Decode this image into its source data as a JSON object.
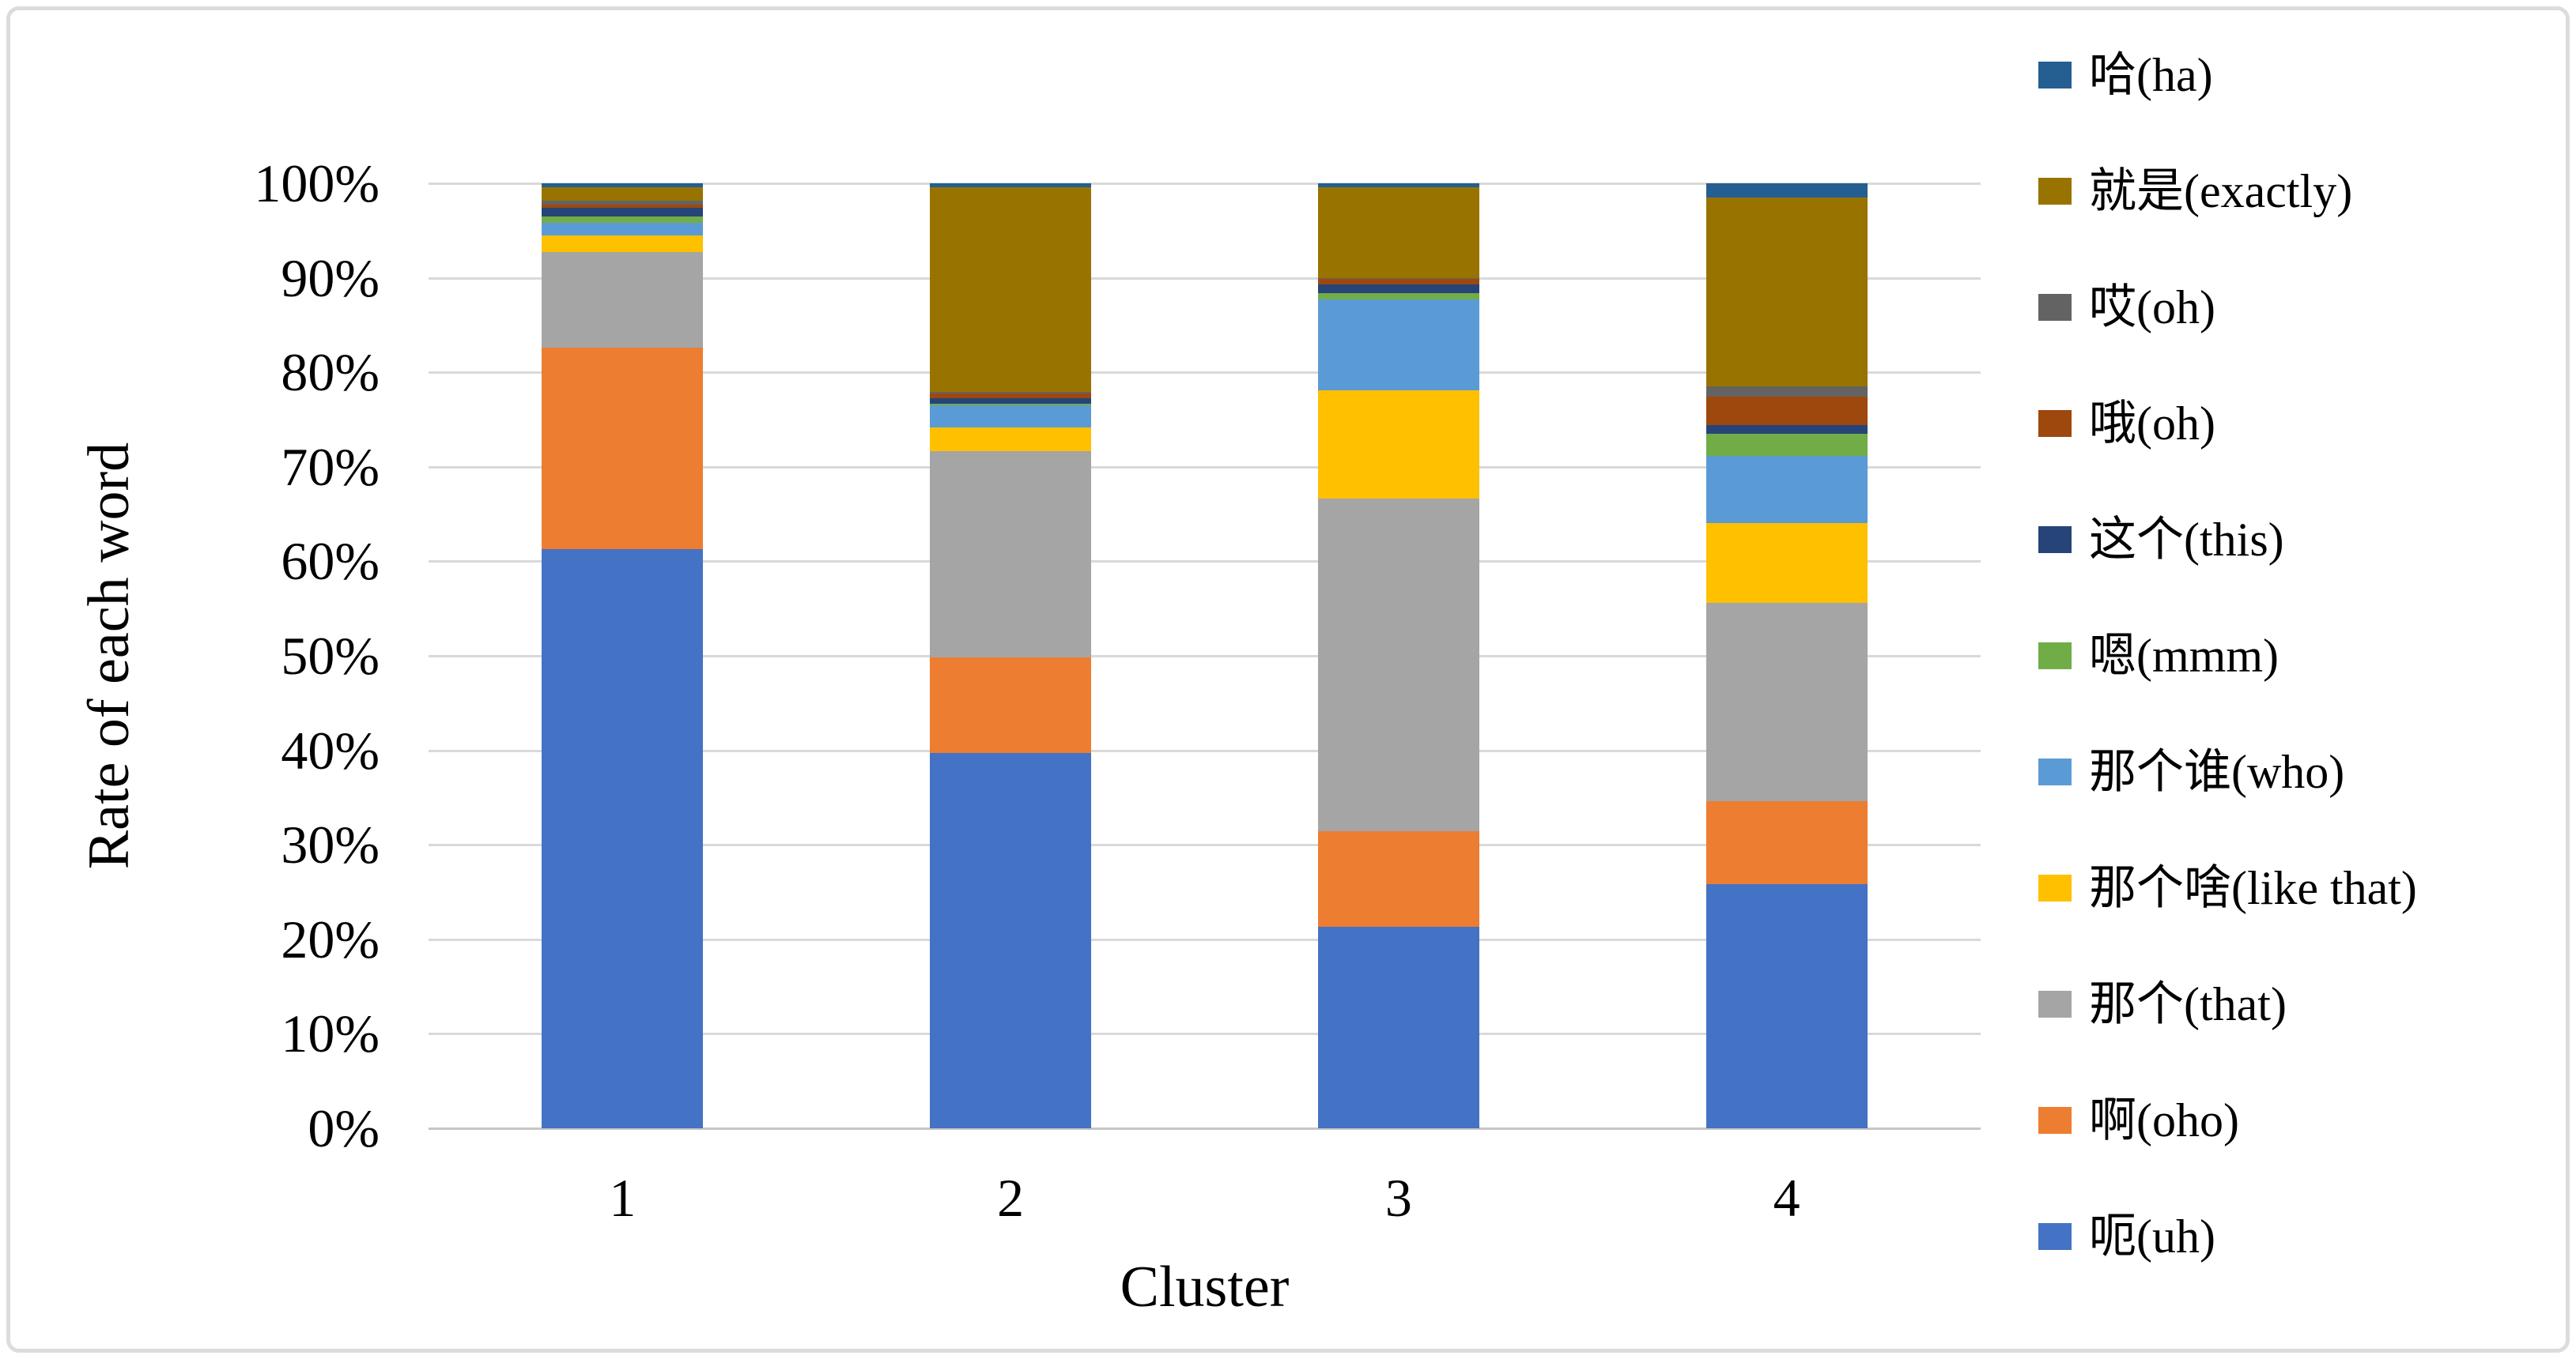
{
  "figure": {
    "y_axis_title": "Rate of each word",
    "x_axis_title": "Cluster",
    "y_tick_labels": [
      "0%",
      "10%",
      "20%",
      "30%",
      "40%",
      "50%",
      "60%",
      "70%",
      "80%",
      "90%",
      "100%"
    ],
    "x_tick_labels": [
      "1",
      "2",
      "3",
      "4"
    ]
  },
  "legend": {
    "position": "right",
    "items": [
      {
        "label": "哈(ha)",
        "color": "#255E91"
      },
      {
        "label": "就是(exactly)",
        "color": "#997300"
      },
      {
        "label": "哎(oh)",
        "color": "#636363"
      },
      {
        "label": "哦(oh)",
        "color": "#9E480E"
      },
      {
        "label": "这个(this)",
        "color": "#264478"
      },
      {
        "label": "嗯(mmm)",
        "color": "#70AD47"
      },
      {
        "label": "那个谁(who)",
        "color": "#5B9BD5"
      },
      {
        "label": "那个啥(like that)",
        "color": "#FFC000"
      },
      {
        "label": "那个(that)",
        "color": "#A5A5A5"
      },
      {
        "label": "啊(oho)",
        "color": "#ED7D31"
      },
      {
        "label": "呃(uh)",
        "color": "#4472C4"
      }
    ]
  },
  "chart_data": {
    "type": "bar",
    "subtype": "stacked-100-percent",
    "title": "",
    "xlabel": "Cluster",
    "ylabel": "Rate of each word",
    "categories": [
      "1",
      "2",
      "3",
      "4"
    ],
    "ylim": [
      0,
      100
    ],
    "y_tick_step_percent": 10,
    "grid": true,
    "legend_position": "right",
    "series_note": "values are percent of each cluster column; series listed bottom-to-top of stack",
    "series": [
      {
        "name": "呃(uh)",
        "color": "#4472C4",
        "values": [
          61.3,
          39.7,
          21.3,
          25.8
        ]
      },
      {
        "name": "啊(oho)",
        "color": "#ED7D31",
        "values": [
          21.3,
          10.1,
          10.1,
          8.8
        ]
      },
      {
        "name": "那个(that)",
        "color": "#A5A5A5",
        "values": [
          10.1,
          21.9,
          35.2,
          21.0
        ]
      },
      {
        "name": "那个啥(like that)",
        "color": "#FFC000",
        "values": [
          1.75,
          2.45,
          11.45,
          8.4
        ]
      },
      {
        "name": "那个谁(who)",
        "color": "#5B9BD5",
        "values": [
          1.4,
          2.35,
          9.65,
          7.1
        ]
      },
      {
        "name": "嗯(mmm)",
        "color": "#70AD47",
        "values": [
          0.65,
          0.2,
          0.6,
          2.35
        ]
      },
      {
        "name": "这个(this)",
        "color": "#264478",
        "values": [
          0.9,
          0.55,
          1.0,
          0.9
        ]
      },
      {
        "name": "哦(oh)",
        "color": "#9E480E",
        "values": [
          0.35,
          0.5,
          0.55,
          3.0
        ]
      },
      {
        "name": "哎(oh)",
        "color": "#636363",
        "values": [
          0.45,
          0.15,
          0.1,
          1.1
        ]
      },
      {
        "name": "就是(exactly)",
        "color": "#997300",
        "values": [
          1.4,
          21.7,
          9.6,
          20.0
        ]
      },
      {
        "name": "哈(ha)",
        "color": "#255E91",
        "values": [
          0.4,
          0.4,
          0.4,
          1.5
        ]
      }
    ]
  },
  "layout_colors": {
    "gridline": "#D9D9D9",
    "axis_line": "#C6C6C6",
    "frame_border": "#DCDCDC",
    "background": "#FFFFFF"
  }
}
